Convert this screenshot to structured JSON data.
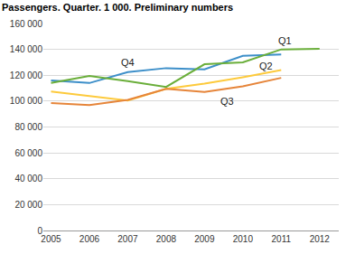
{
  "chart_data": {
    "type": "line",
    "title": "Passengers. Quarter. 1 000. Preliminary numbers",
    "x": [
      2005,
      2006,
      2007,
      2008,
      2009,
      2010,
      2011,
      2012
    ],
    "series": [
      {
        "name": "Q4",
        "color": "#3d8fc9",
        "values": [
          116000,
          114000,
          122500,
          125500,
          124500,
          135000,
          136000,
          null
        ],
        "label_x": 2007,
        "label_y": 130000
      },
      {
        "name": "Q1",
        "color": "#6aae3a",
        "values": [
          114000,
          119500,
          115500,
          111000,
          128500,
          130000,
          140000,
          140500
        ],
        "label_x": 2011.1,
        "label_y": 147000
      },
      {
        "name": "Q2",
        "color": "#fdca3c",
        "values": [
          107500,
          104000,
          100500,
          109500,
          113500,
          118500,
          124000,
          null
        ],
        "label_x": 2010.6,
        "label_y": 127500
      },
      {
        "name": "Q3",
        "color": "#e6853a",
        "values": [
          98500,
          97000,
          101000,
          109500,
          107000,
          111500,
          118000,
          null
        ],
        "label_x": 2009.6,
        "label_y": 100000
      }
    ],
    "xlim": [
      2004.8,
      2012.5
    ],
    "xticks": [
      2005,
      2006,
      2007,
      2008,
      2009,
      2010,
      2011,
      2012
    ],
    "ylim": [
      0,
      160000
    ],
    "yticks": [
      0,
      {
        "value": 20000,
        "label": "20 000"
      },
      {
        "value": 40000,
        "label": "40 000"
      },
      {
        "value": 60000,
        "label": "60 000"
      },
      {
        "value": 80000,
        "label": "80 000"
      },
      {
        "value": 100000,
        "label": "100 000"
      },
      {
        "value": 120000,
        "label": "120 000"
      },
      {
        "value": 140000,
        "label": "140 000"
      },
      {
        "value": 160000,
        "label": "160 000"
      }
    ],
    "grid": true
  }
}
